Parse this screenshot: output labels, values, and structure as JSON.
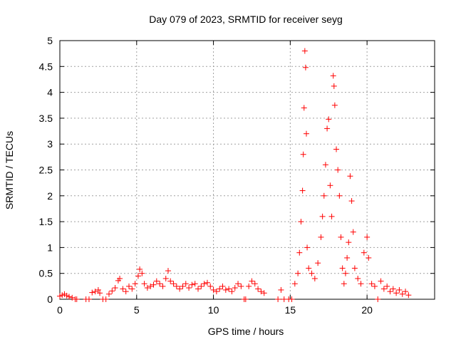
{
  "chart_data": {
    "type": "scatter",
    "title": "Day 079 of 2023, SRMTID for receiver seyg",
    "xlabel": "GPS time / hours",
    "ylabel": "SRMTID / TECUs",
    "xlim": [
      0,
      24.4
    ],
    "ylim": [
      0,
      5
    ],
    "xticks": [
      0,
      5,
      10,
      15,
      20
    ],
    "yticks": [
      0,
      0.5,
      1,
      1.5,
      2,
      2.5,
      3,
      3.5,
      4,
      4.5,
      5
    ],
    "xtick_labels": [
      "0",
      "5",
      "10",
      "15",
      "20"
    ],
    "ytick_labels": [
      "0",
      "0.5",
      "1",
      "1.5",
      "2",
      "2.5",
      "3",
      "3.5",
      "4",
      "4.5",
      "5"
    ],
    "grid": true,
    "marker": "+",
    "series": [
      {
        "name": "seyg",
        "color": "#ff0000",
        "points": [
          [
            0.0,
            0.06
          ],
          [
            0.15,
            0.08
          ],
          [
            0.3,
            0.1
          ],
          [
            0.45,
            0.07
          ],
          [
            0.6,
            0.05
          ],
          [
            0.8,
            0.03
          ],
          [
            1.0,
            0.0
          ],
          [
            1.1,
            0.0
          ],
          [
            1.7,
            0.0
          ],
          [
            1.9,
            0.0
          ],
          [
            2.1,
            0.13
          ],
          [
            2.3,
            0.15
          ],
          [
            2.5,
            0.18
          ],
          [
            2.6,
            0.12
          ],
          [
            2.8,
            0.0
          ],
          [
            3.0,
            0.0
          ],
          [
            3.2,
            0.1
          ],
          [
            3.4,
            0.16
          ],
          [
            3.6,
            0.22
          ],
          [
            3.8,
            0.36
          ],
          [
            3.9,
            0.4
          ],
          [
            4.1,
            0.2
          ],
          [
            4.3,
            0.15
          ],
          [
            4.5,
            0.25
          ],
          [
            4.7,
            0.2
          ],
          [
            4.9,
            0.3
          ],
          [
            5.1,
            0.45
          ],
          [
            5.2,
            0.58
          ],
          [
            5.35,
            0.5
          ],
          [
            5.5,
            0.3
          ],
          [
            5.7,
            0.22
          ],
          [
            5.9,
            0.25
          ],
          [
            6.1,
            0.28
          ],
          [
            6.3,
            0.35
          ],
          [
            6.5,
            0.3
          ],
          [
            6.7,
            0.25
          ],
          [
            6.9,
            0.4
          ],
          [
            7.05,
            0.55
          ],
          [
            7.2,
            0.35
          ],
          [
            7.4,
            0.3
          ],
          [
            7.6,
            0.25
          ],
          [
            7.8,
            0.2
          ],
          [
            8.0,
            0.25
          ],
          [
            8.2,
            0.3
          ],
          [
            8.4,
            0.22
          ],
          [
            8.6,
            0.28
          ],
          [
            8.8,
            0.3
          ],
          [
            9.0,
            0.2
          ],
          [
            9.2,
            0.25
          ],
          [
            9.4,
            0.3
          ],
          [
            9.6,
            0.32
          ],
          [
            9.8,
            0.25
          ],
          [
            10.0,
            0.18
          ],
          [
            10.2,
            0.15
          ],
          [
            10.4,
            0.2
          ],
          [
            10.6,
            0.25
          ],
          [
            10.8,
            0.18
          ],
          [
            11.0,
            0.2
          ],
          [
            11.2,
            0.15
          ],
          [
            11.4,
            0.22
          ],
          [
            11.6,
            0.3
          ],
          [
            11.8,
            0.25
          ],
          [
            12.0,
            0.0
          ],
          [
            12.1,
            0.0
          ],
          [
            12.3,
            0.25
          ],
          [
            12.5,
            0.35
          ],
          [
            12.7,
            0.3
          ],
          [
            12.9,
            0.2
          ],
          [
            13.1,
            0.15
          ],
          [
            13.3,
            0.12
          ],
          [
            14.2,
            0.0
          ],
          [
            14.4,
            0.18
          ],
          [
            14.6,
            0.0
          ],
          [
            14.9,
            0.0
          ],
          [
            15.1,
            0.0
          ],
          [
            15.3,
            0.3
          ],
          [
            15.5,
            0.5
          ],
          [
            15.6,
            0.9
          ],
          [
            15.7,
            1.5
          ],
          [
            15.8,
            2.1
          ],
          [
            15.85,
            2.8
          ],
          [
            15.9,
            3.7
          ],
          [
            15.95,
            4.8
          ],
          [
            16.0,
            4.48
          ],
          [
            16.05,
            3.2
          ],
          [
            16.1,
            1.0
          ],
          [
            16.2,
            0.6
          ],
          [
            16.4,
            0.5
          ],
          [
            16.6,
            0.4
          ],
          [
            16.8,
            0.7
          ],
          [
            17.0,
            1.2
          ],
          [
            17.1,
            1.6
          ],
          [
            17.2,
            2.0
          ],
          [
            17.3,
            2.6
          ],
          [
            17.4,
            3.3
          ],
          [
            17.5,
            3.48
          ],
          [
            17.6,
            2.2
          ],
          [
            17.7,
            1.6
          ],
          [
            17.8,
            4.32
          ],
          [
            17.85,
            4.12
          ],
          [
            17.9,
            3.75
          ],
          [
            18.0,
            2.9
          ],
          [
            18.1,
            2.5
          ],
          [
            18.2,
            2.0
          ],
          [
            18.3,
            1.2
          ],
          [
            18.4,
            0.6
          ],
          [
            18.5,
            0.3
          ],
          [
            18.6,
            0.5
          ],
          [
            18.7,
            0.8
          ],
          [
            18.8,
            1.1
          ],
          [
            18.9,
            2.38
          ],
          [
            19.0,
            1.9
          ],
          [
            19.1,
            1.3
          ],
          [
            19.2,
            0.6
          ],
          [
            19.4,
            0.4
          ],
          [
            19.6,
            0.3
          ],
          [
            19.8,
            0.9
          ],
          [
            20.0,
            1.2
          ],
          [
            20.1,
            0.8
          ],
          [
            20.3,
            0.3
          ],
          [
            20.5,
            0.25
          ],
          [
            20.7,
            0.0
          ],
          [
            20.9,
            0.35
          ],
          [
            21.1,
            0.2
          ],
          [
            21.3,
            0.25
          ],
          [
            21.5,
            0.15
          ],
          [
            21.7,
            0.2
          ],
          [
            21.9,
            0.12
          ],
          [
            22.1,
            0.18
          ],
          [
            22.3,
            0.1
          ],
          [
            22.5,
            0.15
          ],
          [
            22.7,
            0.08
          ]
        ]
      }
    ]
  }
}
